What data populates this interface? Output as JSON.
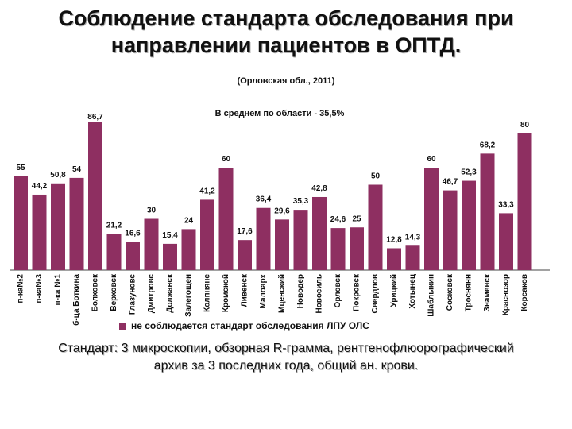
{
  "title": {
    "line1": "Соблюдение стандарта обследования при",
    "line2": "направлении пациентов в ОПТД."
  },
  "subtitle": "(Орловская обл., 2011)",
  "footer": {
    "line1": "Стандарт: 3 микроскопии, обзорная R-грамма, рентгенофлюорографический",
    "line2": "архив за 3 последних года, общий ан. крови."
  },
  "colors": {
    "bar": "#8e2f61"
  },
  "chart_data": {
    "type": "bar",
    "annotation": "В среднем по области - 35,5%",
    "categories": [
      "п-ка№2",
      "п-ка№3",
      "п-ка №1",
      "б-ца Боткина",
      "Болховск",
      "Верховск",
      "Глазуновс",
      "Дмитровс",
      "Должанск",
      "Залегощен",
      "Колпнянс",
      "Кромской",
      "Ливенск",
      "Малоарх",
      "Мценский",
      "Новодер",
      "Новосиль",
      "Орловск",
      "Покровск",
      "Свердлов",
      "Урицкий",
      "Хотынец",
      "Шаблыкин",
      "Сосковск",
      "Троснянн",
      "Знаменск",
      "Краснозор",
      "Корсаков"
    ],
    "values": [
      55,
      44.2,
      50.8,
      54,
      86.7,
      21.2,
      16.6,
      30,
      15.4,
      24,
      41.2,
      60,
      17.6,
      36.4,
      29.6,
      35.3,
      42.8,
      24.6,
      25,
      50,
      12.8,
      14.3,
      60,
      46.7,
      52.3,
      68.2,
      33.3,
      80
    ],
    "value_labels": [
      "55",
      "44,2",
      "50,8",
      "54",
      "86,7",
      "21,2",
      "16,6",
      "30",
      "15,4",
      "24",
      "41,2",
      "60",
      "17,6",
      "36,4",
      "29,6",
      "35,3",
      "42,8",
      "24,6",
      "25",
      "50",
      "12,8",
      "14,3",
      "60",
      "46,7",
      "52,3",
      "68,2",
      "33,3",
      "80"
    ],
    "series": [
      {
        "name": "не соблюдается стандарт обследования ЛПУ ОЛС"
      }
    ],
    "ylim": [
      0,
      95
    ],
    "grid": false,
    "legend_position": "bottom"
  }
}
